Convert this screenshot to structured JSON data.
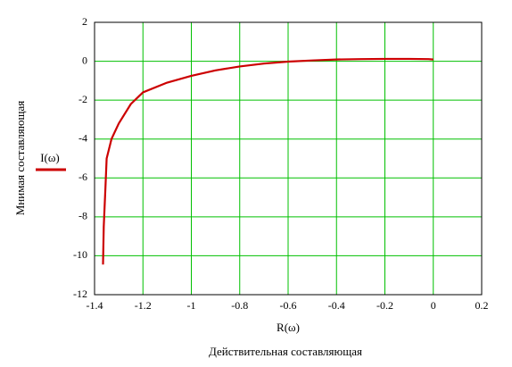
{
  "chart_data": {
    "type": "line",
    "x_axis_label": "Действительная составляющая",
    "x_variable_label": "R(ω)",
    "y_axis_label": "Мнимая составляющая",
    "x": [
      -1.365,
      -1.362,
      -1.355,
      -1.35,
      -1.33,
      -1.3,
      -1.25,
      -1.2,
      -1.1,
      -1.0,
      -0.9,
      -0.8,
      -0.7,
      -0.6,
      -0.5,
      -0.4,
      -0.3,
      -0.2,
      -0.1,
      -0.02,
      0
    ],
    "series": [
      {
        "name": "I(ω)",
        "color": "#cc0000",
        "values": [
          -10.45,
          -8.5,
          -6.5,
          -5.0,
          -4.0,
          -3.2,
          -2.2,
          -1.6,
          -1.1,
          -0.75,
          -0.47,
          -0.27,
          -0.12,
          -0.02,
          0.04,
          0.09,
          0.11,
          0.12,
          0.12,
          0.11,
          0.09
        ]
      }
    ],
    "xlim": [
      -1.4,
      0.2
    ],
    "xticks": [
      -1.4,
      -1.2,
      -1,
      -0.8,
      -0.6,
      -0.4,
      -0.2,
      0,
      0.2
    ],
    "ylim": [
      -12,
      2
    ],
    "yticks": [
      -12,
      -10,
      -8,
      -6,
      -4,
      -2,
      0,
      2
    ],
    "grid": true,
    "grid_color": "#00c000",
    "legend": "left"
  }
}
